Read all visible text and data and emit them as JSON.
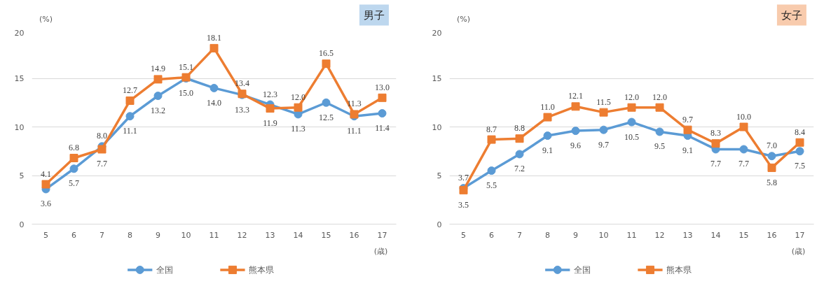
{
  "chart_data": [
    {
      "type": "line",
      "title": "男子",
      "ylabel": "(%)",
      "xlabel": "(歳)",
      "x": [
        5,
        6,
        7,
        8,
        9,
        10,
        11,
        12,
        13,
        14,
        15,
        16,
        17
      ],
      "xlim": [
        4.5,
        17.5
      ],
      "xticks": [
        5,
        6,
        7,
        8,
        9,
        10,
        11,
        12,
        13,
        14,
        15,
        16,
        17
      ],
      "ylim": [
        0,
        20
      ],
      "yticks": [
        0,
        5,
        10,
        15,
        20
      ],
      "grid": "y",
      "legend": "bottom",
      "data_labels": true,
      "series": [
        {
          "name": "全国",
          "color": "#5b9bd5",
          "marker": "circle",
          "values": [
            3.6,
            5.7,
            8.0,
            11.1,
            13.2,
            15.0,
            14.0,
            13.3,
            12.3,
            11.3,
            12.5,
            11.1,
            11.4
          ],
          "value_labels": [
            "3.6",
            "5.7",
            "8.0",
            "11.1",
            "13.2",
            "15.0",
            "14.0",
            "13.3",
            "12.3",
            "11.3",
            "12.5",
            "11.1",
            "11.4"
          ]
        },
        {
          "name": "熊本県",
          "color": "#ed7d31",
          "marker": "square",
          "values": [
            4.1,
            6.8,
            7.7,
            12.7,
            14.9,
            15.1,
            18.1,
            13.4,
            11.9,
            12.0,
            16.5,
            11.3,
            13.0
          ],
          "value_labels": [
            "4.1",
            "6.8",
            "7.7",
            "12.7",
            "14.9",
            "15.1",
            "18.1",
            "13.4",
            "11.9",
            "12.0",
            "16.5",
            "11.3",
            "13.0"
          ]
        }
      ]
    },
    {
      "type": "line",
      "title": "女子",
      "ylabel": "(%)",
      "xlabel": "(歳)",
      "x": [
        5,
        6,
        7,
        8,
        9,
        10,
        11,
        12,
        13,
        14,
        15,
        16,
        17
      ],
      "xlim": [
        4.5,
        17.5
      ],
      "xticks": [
        5,
        6,
        7,
        8,
        9,
        10,
        11,
        12,
        13,
        14,
        15,
        16,
        17
      ],
      "ylim": [
        0,
        20
      ],
      "yticks": [
        0,
        5,
        10,
        15,
        20
      ],
      "grid": "y",
      "legend": "bottom",
      "data_labels": true,
      "series": [
        {
          "name": "全国",
          "color": "#5b9bd5",
          "marker": "circle",
          "values": [
            3.7,
            5.5,
            7.2,
            9.1,
            9.6,
            9.7,
            10.5,
            9.5,
            9.1,
            7.7,
            7.7,
            7.0,
            7.5
          ],
          "value_labels": [
            "3.7",
            "5.5",
            "7.2",
            "9.1",
            "9.6",
            "9.7",
            "10.5",
            "9.5",
            "9.1",
            "7.7",
            "7.7",
            "7.0",
            "7.5"
          ]
        },
        {
          "name": "熊本県",
          "color": "#ed7d31",
          "marker": "square",
          "values": [
            3.5,
            8.7,
            8.8,
            11.0,
            12.1,
            11.5,
            12.0,
            12.0,
            9.7,
            8.3,
            10.0,
            5.8,
            8.4
          ],
          "value_labels": [
            "3.5",
            "8.7",
            "8.8",
            "11.0",
            "12.1",
            "11.5",
            "12.0",
            "12.0",
            "9.7",
            "8.3",
            "10.0",
            "5.8",
            "8.4"
          ]
        }
      ]
    }
  ]
}
